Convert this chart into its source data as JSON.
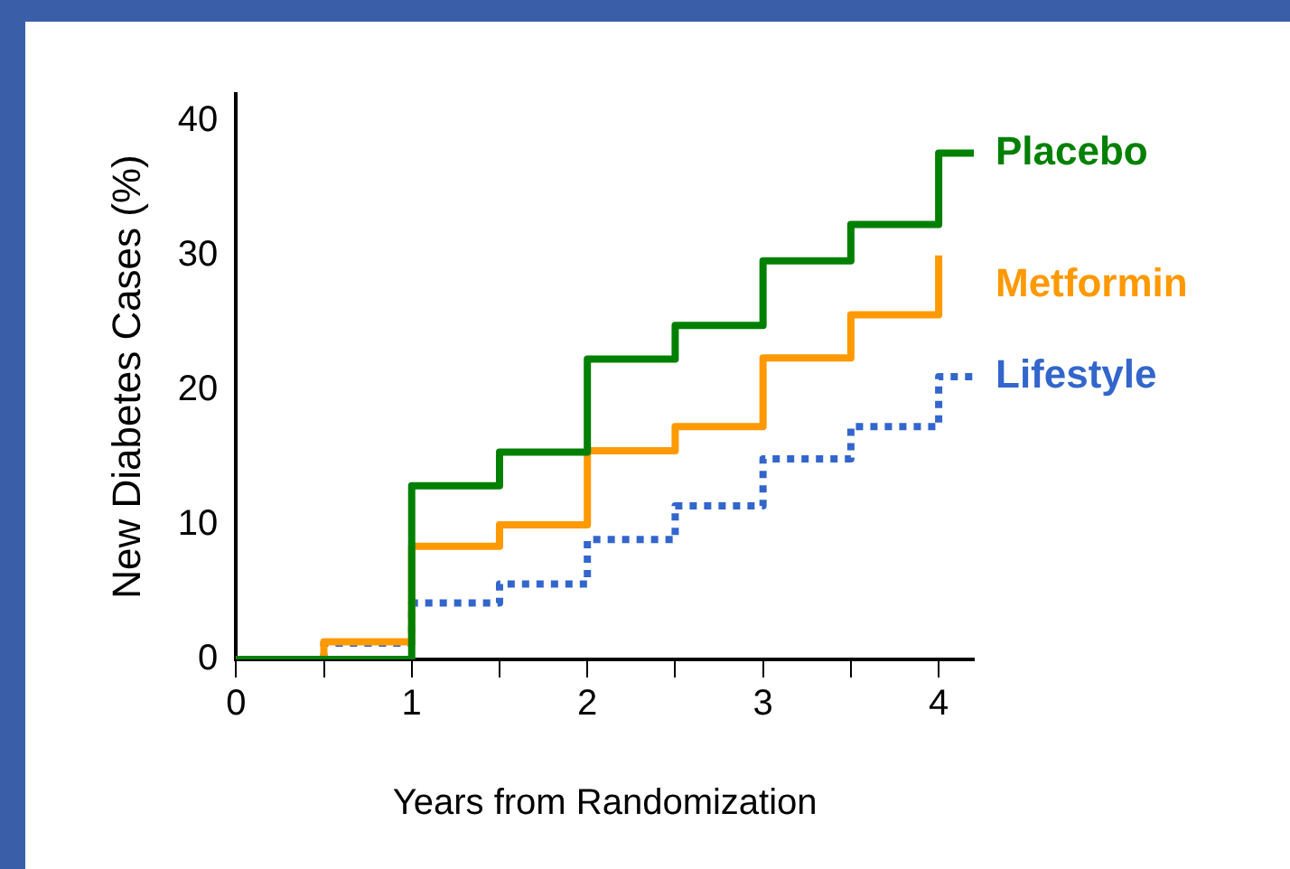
{
  "chart_data": {
    "type": "step",
    "xlabel": "Years from Randomization",
    "ylabel": "New Diabetes Cases (%)",
    "xlim": [
      0,
      4.2
    ],
    "ylim": [
      0,
      42
    ],
    "xticks": [
      0,
      {
        "value": 0.5,
        "label": null
      },
      1,
      {
        "value": 1.5,
        "label": null
      },
      2,
      {
        "value": 2.5,
        "label": null
      },
      3,
      {
        "value": 3.5,
        "label": null
      },
      4
    ],
    "yticks": [
      0,
      10,
      20,
      30,
      40
    ],
    "grid": false,
    "legend": false,
    "marker": "none",
    "series": [
      {
        "name": "Placebo",
        "color": "#008000",
        "line_style": "solid",
        "x": [
          0,
          1,
          1.5,
          2,
          2.5,
          3,
          3.5,
          4,
          4.2
        ],
        "values": [
          0,
          12.9,
          15.4,
          22.3,
          24.8,
          29.6,
          32.3,
          37.6,
          37.6
        ]
      },
      {
        "name": "Metformin",
        "color": "#ff9900",
        "line_style": "solid",
        "x": [
          0,
          0.5,
          1,
          1.5,
          2,
          2.5,
          3,
          3.5,
          4
        ],
        "values": [
          0,
          1.3,
          8.4,
          10,
          15.5,
          17.3,
          22.4,
          25.6,
          30
        ]
      },
      {
        "name": "Lifestyle",
        "color": "#3366cc",
        "line_style": "dotted",
        "x": [
          0,
          0.5,
          1,
          1.5,
          2,
          2.5,
          3,
          3.5,
          4,
          4.2
        ],
        "values": [
          0,
          1.2,
          4.2,
          5.6,
          8.9,
          11.4,
          14.9,
          17.3,
          21,
          21
        ]
      }
    ]
  }
}
